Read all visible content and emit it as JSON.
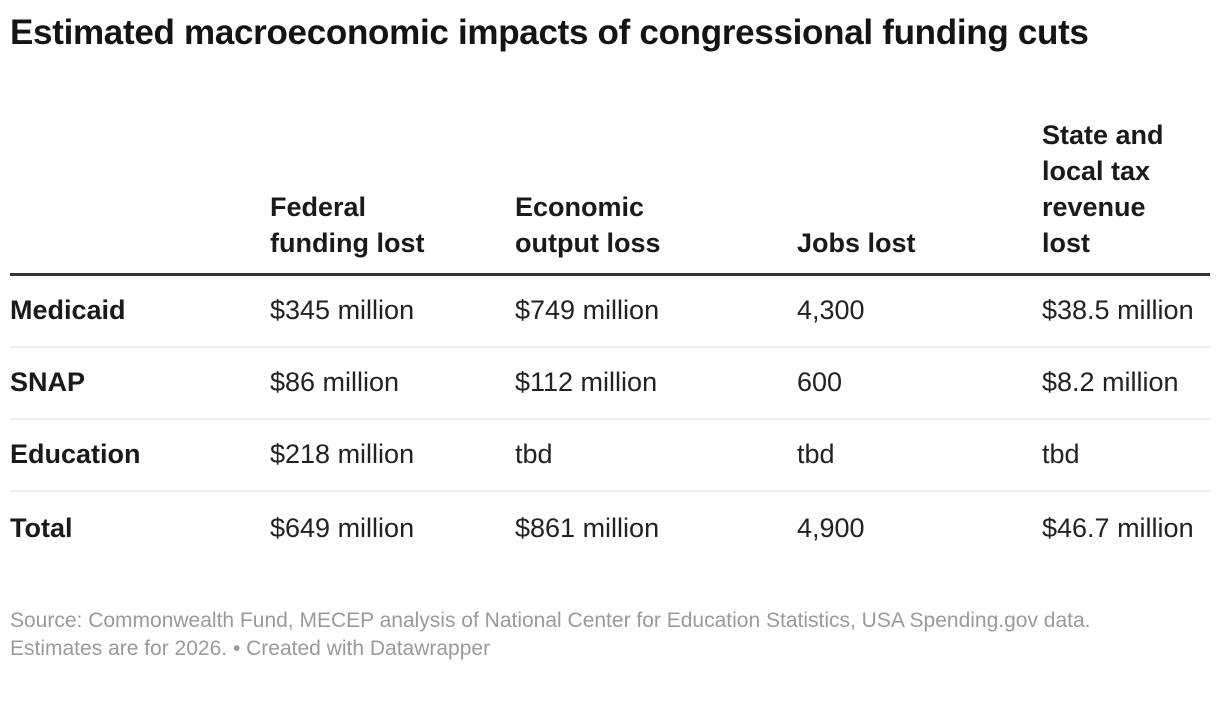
{
  "title": "Estimated macroeconomic impacts of congressional funding cuts",
  "table": {
    "corner_label": "",
    "columns": [
      {
        "label": "Federal\nfunding lost"
      },
      {
        "label": "Economic\noutput loss"
      },
      {
        "label": "Jobs lost"
      },
      {
        "label": "State and\nlocal tax\nrevenue\nlost"
      }
    ],
    "rows": [
      {
        "label": "Medicaid",
        "values": [
          "$345 million",
          "$749 million",
          "4,300",
          "$38.5 million"
        ]
      },
      {
        "label": "SNAP",
        "values": [
          "$86 million",
          "$112 million",
          "600",
          "$8.2 million"
        ]
      },
      {
        "label": "Education",
        "values": [
          "$218 million",
          "tbd",
          "tbd",
          "tbd"
        ]
      },
      {
        "label": "Total",
        "values": [
          "$649 million",
          "$861 million",
          "4,900",
          "$46.7 million"
        ]
      }
    ]
  },
  "footer": {
    "text": "Source: Commonwealth Fund, MECEP analysis of National Center for Education Statistics, USA Spending.gov data.\nEstimates are for 2026. • Created with Datawrapper"
  },
  "colors": {
    "title_text": "#141414",
    "body_text": "#222222",
    "bold_text": "#1a1a1a",
    "header_rule": "#333333",
    "row_rule": "#eeeeee",
    "footer_text": "#9a9a9a",
    "background": "#ffffff"
  },
  "chart_data": {
    "type": "table",
    "title": "Estimated macroeconomic impacts of congressional funding cuts",
    "columns": [
      "",
      "Federal funding lost",
      "Economic output loss",
      "Jobs lost",
      "State and local tax revenue lost"
    ],
    "rows": [
      [
        "Medicaid",
        "$345 million",
        "$749 million",
        "4,300",
        "$38.5 million"
      ],
      [
        "SNAP",
        "$86 million",
        "$112 million",
        "600",
        "$8.2 million"
      ],
      [
        "Education",
        "$218 million",
        "tbd",
        "tbd",
        "tbd"
      ],
      [
        "Total",
        "$649 million",
        "$861 million",
        "4,900",
        "$46.7 million"
      ]
    ],
    "numeric_values": {
      "federal_funding_lost_millions_usd": {
        "Medicaid": 345,
        "SNAP": 86,
        "Education": 218,
        "Total": 649
      },
      "economic_output_loss_millions_usd": {
        "Medicaid": 749,
        "SNAP": 112,
        "Education": null,
        "Total": 861
      },
      "jobs_lost": {
        "Medicaid": 4300,
        "SNAP": 600,
        "Education": null,
        "Total": 4900
      },
      "state_local_tax_revenue_lost_millions_usd": {
        "Medicaid": 38.5,
        "SNAP": 8.2,
        "Education": null,
        "Total": 46.7
      }
    },
    "notes": "Source: Commonwealth Fund, MECEP analysis of National Center for Education Statistics, USA Spending.gov data. Estimates are for 2026. • Created with Datawrapper"
  }
}
